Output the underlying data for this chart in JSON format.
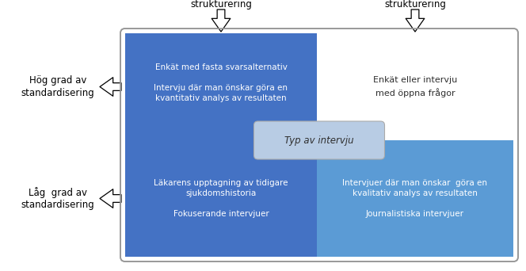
{
  "bg_color": "#ffffff",
  "outer_box_edge": "#999999",
  "blue_dark": "#4472C4",
  "blue_light": "#B8CCE4",
  "blue_mid": "#5B9BD5",
  "top_left_text": "Enkät med fasta svarsalternativ\n\nIntervju där man önskar göra en\nkvantitativ analys av resultaten",
  "top_right_text": "Enkät eller intervju\nmed öppna frågor",
  "bottom_left_text": "Läkarens upptagning av tidigare\nsjukdomshistoria\n\nFokuserande intervjuer",
  "bottom_right_text": "Intervjuer där man önskar  göra en\nkvalitativ analys av resultaten\n\nJournalistiska intervjuer",
  "center_text": "Typ av intervju",
  "top_left_label": "Hög grad av\nstrukturering",
  "top_right_label": "Låg grad av\nstrukturering",
  "left_top_label": "Hög grad av\nstandardisering",
  "left_bottom_label": "Låg  grad av\nstandardisering",
  "text_color_white": "#ffffff",
  "text_color_dark": "#2F2F2F",
  "font_size": 7.5,
  "label_font_size": 8.5
}
